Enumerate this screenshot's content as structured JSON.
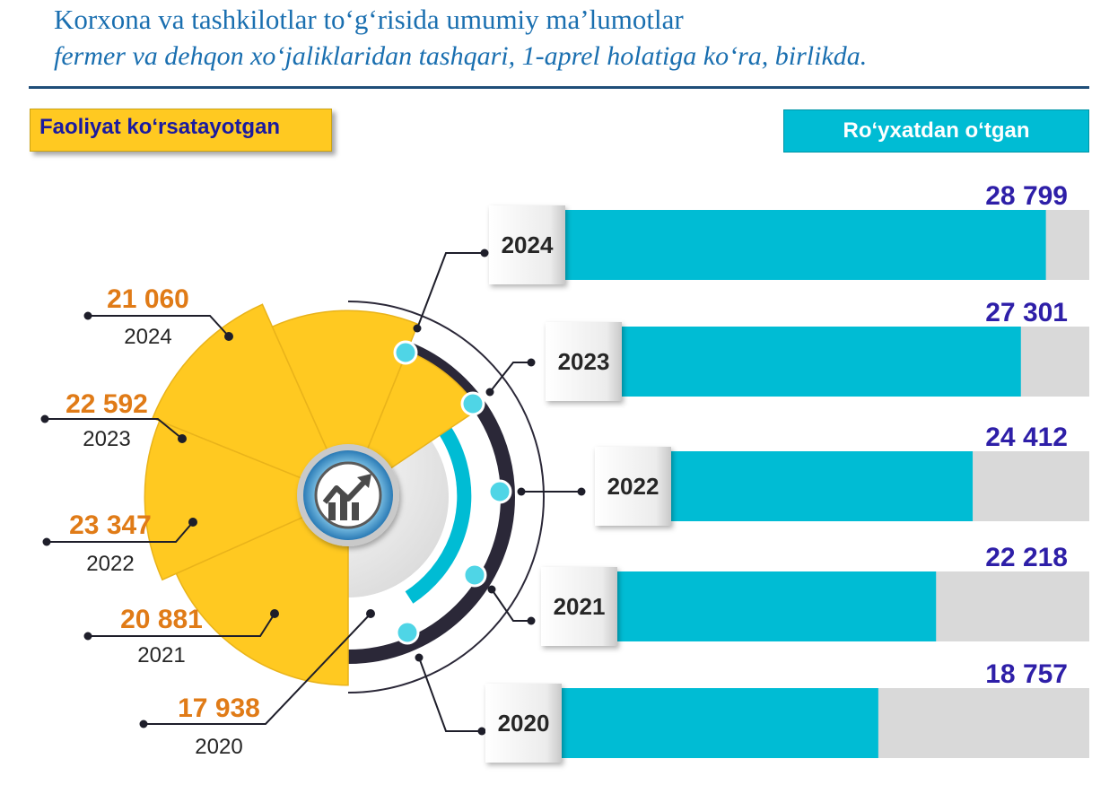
{
  "header": {
    "title": "Korxona va tashkilotlar to‘g‘risida umumiy ma’lumotlar",
    "subtitle": "fermer va dehqon xo‘jaliklaridan tashqari, 1-aprel holatiga ko‘ra, birlikda."
  },
  "legend": {
    "active_label": "Faoliyat ko‘rsatayotgan",
    "registered_label": "Ro‘yxatdan o‘tgan"
  },
  "center_icon": "growth-chart-icon",
  "colors": {
    "title": "#1a6fb0",
    "active": "#ffc921",
    "active_value": "#e07b17",
    "registered": "#00bcd4",
    "registered_value": "#2e1fa8",
    "bar_track": "#d9d9d9",
    "ring_dark": "#2b2838"
  },
  "chart_data": [
    {
      "type": "pie",
      "series_label": "Faoliyat ko‘rsatayotgan",
      "categories": [
        "2024",
        "2023",
        "2022",
        "2021",
        "2020"
      ],
      "values": [
        21060,
        22592,
        23347,
        20881,
        17938
      ],
      "value_labels": [
        "21 060",
        "22 592",
        "23 347",
        "20 881",
        "17 938"
      ]
    },
    {
      "type": "bar",
      "orientation": "horizontal",
      "series_label": "Ro‘yxatdan o‘tgan",
      "categories": [
        "2024",
        "2023",
        "2022",
        "2021",
        "2020"
      ],
      "values": [
        28799,
        27301,
        24412,
        22218,
        18757
      ],
      "value_labels": [
        "28 799",
        "27 301",
        "24 412",
        "22 218",
        "18 757"
      ]
    }
  ]
}
